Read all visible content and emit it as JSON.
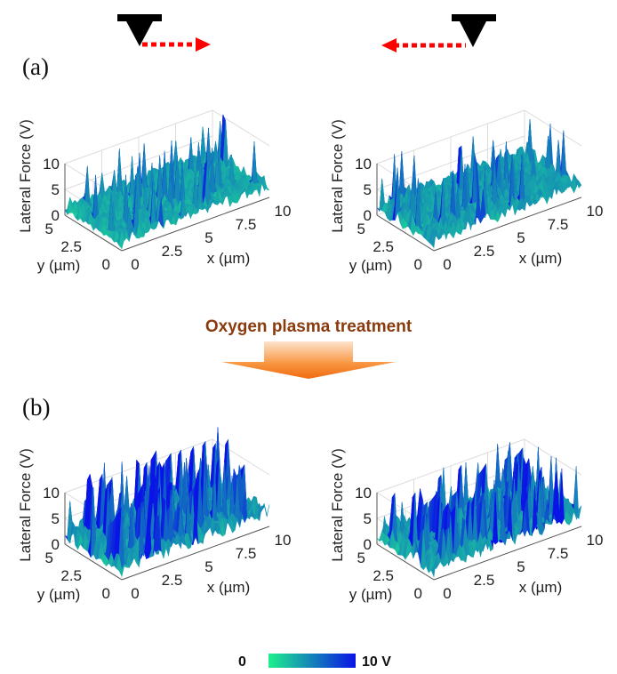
{
  "figure": {
    "panel_labels": [
      "(a)",
      "(b)"
    ],
    "treatment_label": "Oxygen plasma treatment",
    "tip_icon": "afm-tip-icon",
    "scan_arrow_color": "#ff0000",
    "arrow_color": "#f57c22"
  },
  "colorbar": {
    "min_label": "0",
    "max_label": "10 V",
    "low_color": "#1ef08c",
    "high_color": "#0a14e6"
  },
  "chart_data": {
    "type": "surface",
    "xlabel": "x (µm)",
    "ylabel": "y (µm)",
    "zlabel": "Lateral Force (V)",
    "xlim": [
      0,
      10
    ],
    "ylim": [
      0,
      5
    ],
    "zlim": [
      0,
      10
    ],
    "xticks": [
      "0",
      "2.5",
      "5",
      "7.5",
      "10"
    ],
    "yticks": [
      "0",
      "2.5",
      "5"
    ],
    "zticks": [
      "0",
      "5",
      "10"
    ],
    "grid": true,
    "panels": [
      {
        "group": "(a)",
        "scan_direction": "left-to-right",
        "typical_force": 3,
        "peak_force": 11
      },
      {
        "group": "(a)",
        "scan_direction": "right-to-left",
        "typical_force": 3.5,
        "peak_force": 12
      },
      {
        "group": "(b)",
        "scan_direction": "left-to-right",
        "typical_force": 4,
        "peak_force": 14
      },
      {
        "group": "(b)",
        "scan_direction": "right-to-left",
        "typical_force": 3.5,
        "peak_force": 13
      }
    ]
  }
}
